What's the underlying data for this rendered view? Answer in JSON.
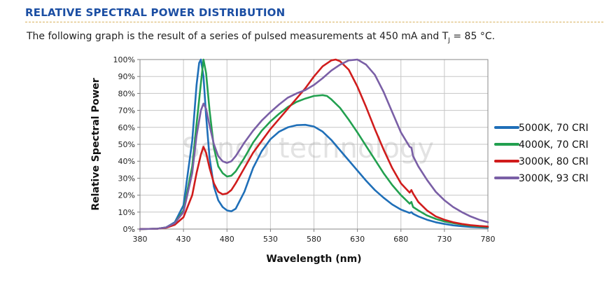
{
  "header": {
    "title": "RELATIVE SPECTRAL POWER DISTRIBUTION"
  },
  "intro": {
    "before": "The following graph is the result of a series of pulsed measurements at 450 mA and T",
    "subscript": "J",
    "after": " = 85 °C."
  },
  "watermark": "Sengo   technology",
  "chart_data": {
    "type": "line",
    "title": "",
    "xlabel": "Wavelength (nm)",
    "ylabel": "Relative Spectral Power",
    "xlim": [
      380,
      780
    ],
    "ylim": [
      0,
      100
    ],
    "x_ticks": [
      380,
      430,
      480,
      530,
      580,
      630,
      680,
      730,
      780
    ],
    "y_ticks": [
      0,
      10,
      20,
      30,
      40,
      50,
      60,
      70,
      80,
      90,
      100
    ],
    "y_tick_suffix": "%",
    "grid": true,
    "legend_position": "right",
    "series": [
      {
        "name": "5000K, 70 CRI",
        "color": "#1f6fb8",
        "points": [
          [
            380,
            0
          ],
          [
            400,
            0.2
          ],
          [
            410,
            1
          ],
          [
            420,
            4
          ],
          [
            430,
            14
          ],
          [
            440,
            52
          ],
          [
            445,
            85
          ],
          [
            448,
            98
          ],
          [
            450,
            100
          ],
          [
            453,
            90
          ],
          [
            456,
            67
          ],
          [
            460,
            42
          ],
          [
            465,
            25
          ],
          [
            470,
            17
          ],
          [
            475,
            13
          ],
          [
            480,
            11
          ],
          [
            485,
            10.5
          ],
          [
            490,
            12
          ],
          [
            500,
            22
          ],
          [
            510,
            36
          ],
          [
            520,
            46
          ],
          [
            530,
            53
          ],
          [
            540,
            57.5
          ],
          [
            550,
            60
          ],
          [
            560,
            61.3
          ],
          [
            570,
            61.5
          ],
          [
            580,
            60.5
          ],
          [
            590,
            57.5
          ],
          [
            600,
            52.5
          ],
          [
            610,
            46.5
          ],
          [
            620,
            40.5
          ],
          [
            630,
            34.5
          ],
          [
            640,
            28.5
          ],
          [
            650,
            23
          ],
          [
            660,
            18.5
          ],
          [
            670,
            14.5
          ],
          [
            680,
            11.5
          ],
          [
            690,
            9.5
          ],
          [
            692,
            10
          ],
          [
            694,
            9
          ],
          [
            700,
            7.5
          ],
          [
            710,
            5.5
          ],
          [
            720,
            4
          ],
          [
            730,
            3
          ],
          [
            740,
            2.2
          ],
          [
            750,
            1.7
          ],
          [
            760,
            1.3
          ],
          [
            770,
            1
          ],
          [
            780,
            0.8
          ]
        ]
      },
      {
        "name": "4000K, 70 CRI",
        "color": "#22a04f",
        "points": [
          [
            380,
            0
          ],
          [
            400,
            0.2
          ],
          [
            410,
            1
          ],
          [
            420,
            3.5
          ],
          [
            430,
            11
          ],
          [
            440,
            37
          ],
          [
            445,
            62
          ],
          [
            450,
            86
          ],
          [
            453,
            100
          ],
          [
            456,
            92
          ],
          [
            460,
            70
          ],
          [
            465,
            48
          ],
          [
            470,
            37
          ],
          [
            475,
            33
          ],
          [
            480,
            31
          ],
          [
            485,
            31.5
          ],
          [
            490,
            34
          ],
          [
            500,
            42
          ],
          [
            510,
            51
          ],
          [
            520,
            58
          ],
          [
            530,
            63.5
          ],
          [
            540,
            68
          ],
          [
            550,
            72
          ],
          [
            560,
            75
          ],
          [
            570,
            77
          ],
          [
            580,
            78.5
          ],
          [
            590,
            79
          ],
          [
            595,
            78.5
          ],
          [
            600,
            76.5
          ],
          [
            610,
            71.5
          ],
          [
            620,
            64.5
          ],
          [
            630,
            57
          ],
          [
            640,
            49
          ],
          [
            650,
            41
          ],
          [
            660,
            33
          ],
          [
            670,
            26
          ],
          [
            680,
            20
          ],
          [
            690,
            15
          ],
          [
            692,
            16
          ],
          [
            694,
            13
          ],
          [
            700,
            11
          ],
          [
            710,
            8
          ],
          [
            720,
            6
          ],
          [
            730,
            4.5
          ],
          [
            740,
            3.5
          ],
          [
            750,
            2.7
          ],
          [
            760,
            2
          ],
          [
            770,
            1.5
          ],
          [
            780,
            1.2
          ]
        ]
      },
      {
        "name": "3000K, 80 CRI",
        "color": "#d01c1c",
        "points": [
          [
            380,
            0
          ],
          [
            400,
            0.2
          ],
          [
            410,
            0.8
          ],
          [
            420,
            2.5
          ],
          [
            430,
            7
          ],
          [
            440,
            20
          ],
          [
            445,
            33
          ],
          [
            450,
            44
          ],
          [
            453,
            48.5
          ],
          [
            456,
            45
          ],
          [
            460,
            36
          ],
          [
            465,
            27
          ],
          [
            470,
            22
          ],
          [
            475,
            20.5
          ],
          [
            480,
            21
          ],
          [
            485,
            23
          ],
          [
            490,
            27
          ],
          [
            500,
            36
          ],
          [
            510,
            45
          ],
          [
            520,
            52
          ],
          [
            530,
            59
          ],
          [
            540,
            65
          ],
          [
            550,
            71
          ],
          [
            560,
            77
          ],
          [
            570,
            83
          ],
          [
            580,
            90
          ],
          [
            590,
            96
          ],
          [
            600,
            99.5
          ],
          [
            605,
            100
          ],
          [
            610,
            99
          ],
          [
            620,
            94
          ],
          [
            630,
            84
          ],
          [
            640,
            72
          ],
          [
            650,
            59
          ],
          [
            660,
            47
          ],
          [
            670,
            36
          ],
          [
            680,
            27
          ],
          [
            690,
            21.5
          ],
          [
            692,
            23
          ],
          [
            694,
            21
          ],
          [
            700,
            16
          ],
          [
            710,
            11
          ],
          [
            720,
            7.5
          ],
          [
            730,
            5.5
          ],
          [
            740,
            4
          ],
          [
            750,
            3
          ],
          [
            760,
            2.3
          ],
          [
            770,
            1.8
          ],
          [
            780,
            1.5
          ]
        ]
      },
      {
        "name": "3000K, 93 CRI",
        "color": "#7a5fa6",
        "points": [
          [
            380,
            0
          ],
          [
            400,
            0.2
          ],
          [
            410,
            1
          ],
          [
            420,
            3.5
          ],
          [
            430,
            10
          ],
          [
            440,
            33
          ],
          [
            445,
            55
          ],
          [
            450,
            70
          ],
          [
            453,
            74
          ],
          [
            456,
            71
          ],
          [
            460,
            61
          ],
          [
            465,
            50
          ],
          [
            470,
            43
          ],
          [
            475,
            40
          ],
          [
            480,
            39
          ],
          [
            485,
            40
          ],
          [
            490,
            43
          ],
          [
            500,
            51
          ],
          [
            510,
            58
          ],
          [
            520,
            64
          ],
          [
            530,
            69
          ],
          [
            540,
            73.5
          ],
          [
            550,
            77.5
          ],
          [
            560,
            80
          ],
          [
            570,
            82
          ],
          [
            580,
            85
          ],
          [
            590,
            89
          ],
          [
            600,
            93.5
          ],
          [
            610,
            97
          ],
          [
            620,
            99.5
          ],
          [
            630,
            100
          ],
          [
            640,
            97
          ],
          [
            650,
            91
          ],
          [
            660,
            81
          ],
          [
            670,
            69
          ],
          [
            680,
            57
          ],
          [
            690,
            48.5
          ],
          [
            692,
            48
          ],
          [
            694,
            43
          ],
          [
            700,
            37
          ],
          [
            710,
            29
          ],
          [
            720,
            22
          ],
          [
            730,
            17
          ],
          [
            740,
            13
          ],
          [
            750,
            10
          ],
          [
            760,
            7.5
          ],
          [
            770,
            5.5
          ],
          [
            780,
            4
          ]
        ]
      }
    ]
  }
}
